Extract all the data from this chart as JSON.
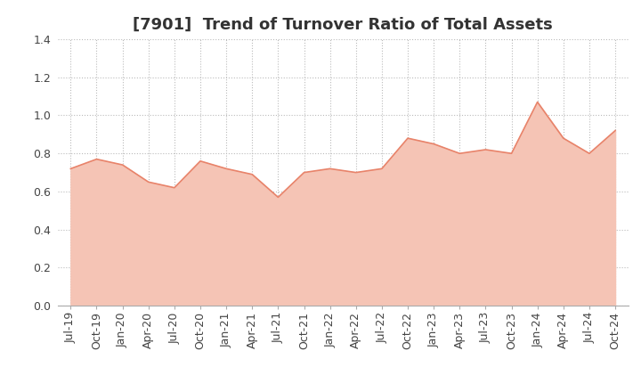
{
  "title": "[7901]  Trend of Turnover Ratio of Total Assets",
  "x_labels": [
    "Jul-19",
    "Oct-19",
    "Jan-20",
    "Apr-20",
    "Jul-20",
    "Oct-20",
    "Jan-21",
    "Apr-21",
    "Jul-21",
    "Oct-21",
    "Jan-22",
    "Apr-22",
    "Jul-22",
    "Oct-22",
    "Jan-23",
    "Apr-23",
    "Jul-23",
    "Oct-23",
    "Jan-24",
    "Apr-24",
    "Jul-24",
    "Oct-24"
  ],
  "y_values": [
    0.72,
    0.77,
    0.74,
    0.65,
    0.62,
    0.76,
    0.72,
    0.69,
    0.57,
    0.7,
    0.72,
    0.7,
    0.72,
    0.88,
    0.85,
    0.8,
    0.82,
    0.8,
    1.07,
    0.88,
    0.8,
    0.92
  ],
  "ylim": [
    0.0,
    1.4
  ],
  "yticks": [
    0.0,
    0.2,
    0.4,
    0.6,
    0.8,
    1.0,
    1.2,
    1.4
  ],
  "line_color": "#e8836a",
  "fill_color": "#f5c4b5",
  "background_color": "#ffffff",
  "grid_color": "#bbbbbb",
  "title_fontsize": 13,
  "tick_fontsize": 9
}
